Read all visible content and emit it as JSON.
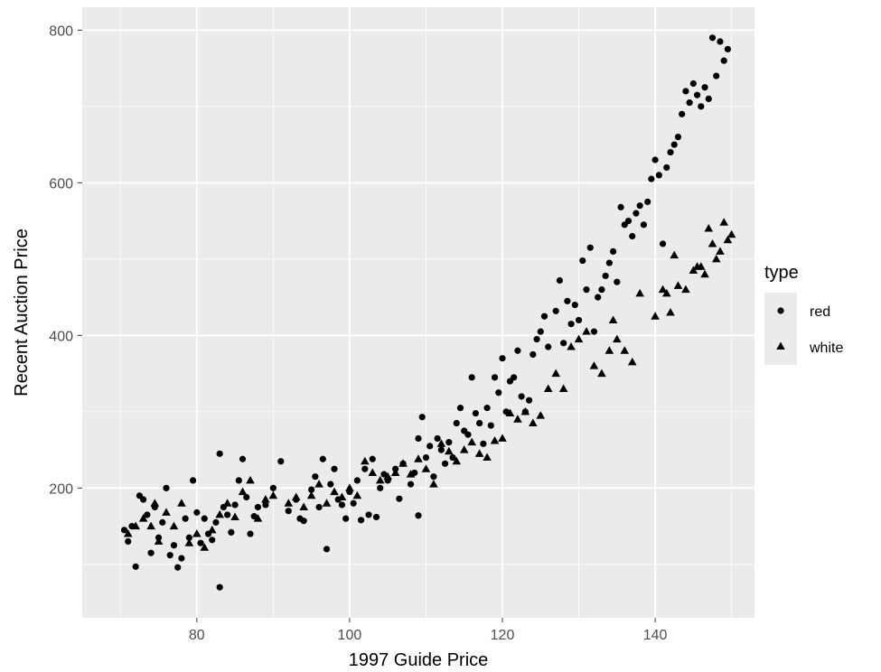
{
  "chart_data": {
    "type": "scatter",
    "title": "",
    "xlabel": "1997 Guide Price",
    "ylabel": "Recent Auction Price",
    "xlim": [
      65,
      153
    ],
    "ylim": [
      30,
      830
    ],
    "x_ticks": [
      80,
      100,
      120,
      140
    ],
    "y_ticks": [
      200,
      400,
      600,
      800
    ],
    "grid": true,
    "legend": {
      "title": "type",
      "position": "right",
      "entries": [
        {
          "label": "red",
          "shape": "circle"
        },
        {
          "label": "white",
          "shape": "triangle"
        }
      ]
    },
    "series": [
      {
        "name": "red",
        "shape": "circle",
        "points": [
          [
            70.5,
            145
          ],
          [
            71,
            130
          ],
          [
            71.5,
            150
          ],
          [
            72,
            97
          ],
          [
            72.5,
            190
          ],
          [
            73,
            185
          ],
          [
            73.5,
            165
          ],
          [
            74,
            115
          ],
          [
            74.5,
            175
          ],
          [
            75,
            135
          ],
          [
            75.5,
            155
          ],
          [
            76,
            200
          ],
          [
            76.5,
            112
          ],
          [
            77,
            125
          ],
          [
            77.5,
            96
          ],
          [
            78,
            108
          ],
          [
            78.5,
            160
          ],
          [
            79,
            135
          ],
          [
            79.5,
            210
          ],
          [
            80,
            168
          ],
          [
            80.5,
            128
          ],
          [
            81,
            160
          ],
          [
            81.5,
            140
          ],
          [
            82,
            132
          ],
          [
            82.5,
            155
          ],
          [
            83,
            245
          ],
          [
            83,
            70
          ],
          [
            83.5,
            175
          ],
          [
            84,
            165
          ],
          [
            84.5,
            142
          ],
          [
            85,
            178
          ],
          [
            85.5,
            210
          ],
          [
            86,
            238
          ],
          [
            86.5,
            188
          ],
          [
            87,
            140
          ],
          [
            87.5,
            163
          ],
          [
            88,
            175
          ],
          [
            89,
            178
          ],
          [
            90,
            200
          ],
          [
            91,
            235
          ],
          [
            92,
            170
          ],
          [
            93,
            185
          ],
          [
            93.5,
            160
          ],
          [
            94,
            157
          ],
          [
            95,
            198
          ],
          [
            95.5,
            215
          ],
          [
            96,
            175
          ],
          [
            96.5,
            238
          ],
          [
            97,
            120
          ],
          [
            97.5,
            205
          ],
          [
            98,
            225
          ],
          [
            98.5,
            185
          ],
          [
            99,
            178
          ],
          [
            99.5,
            160
          ],
          [
            100,
            195
          ],
          [
            100.5,
            180
          ],
          [
            101,
            210
          ],
          [
            101.5,
            158
          ],
          [
            102,
            225
          ],
          [
            102.5,
            165
          ],
          [
            103,
            238
          ],
          [
            103.5,
            162
          ],
          [
            104,
            200
          ],
          [
            104.5,
            218
          ],
          [
            105,
            210
          ],
          [
            106,
            225
          ],
          [
            106.5,
            186
          ],
          [
            107,
            232
          ],
          [
            108,
            205
          ],
          [
            108.5,
            220
          ],
          [
            109,
            265
          ],
          [
            109,
            164
          ],
          [
            109.5,
            293
          ],
          [
            110,
            240
          ],
          [
            110.5,
            255
          ],
          [
            111,
            215
          ],
          [
            111.5,
            265
          ],
          [
            112,
            250
          ],
          [
            112.5,
            232
          ],
          [
            113,
            260
          ],
          [
            113.5,
            240
          ],
          [
            114,
            285
          ],
          [
            114.5,
            305
          ],
          [
            115,
            275
          ],
          [
            115.5,
            270
          ],
          [
            116,
            345
          ],
          [
            116.5,
            298
          ],
          [
            117,
            285
          ],
          [
            117.5,
            258
          ],
          [
            118,
            305
          ],
          [
            118.5,
            282
          ],
          [
            119,
            345
          ],
          [
            119.5,
            325
          ],
          [
            120,
            370
          ],
          [
            120.5,
            300
          ],
          [
            121,
            340
          ],
          [
            121.5,
            345
          ],
          [
            122,
            380
          ],
          [
            122.5,
            320
          ],
          [
            123,
            300
          ],
          [
            123.5,
            315
          ],
          [
            124,
            375
          ],
          [
            124.5,
            395
          ],
          [
            125,
            405
          ],
          [
            125.5,
            425
          ],
          [
            126,
            385
          ],
          [
            127,
            432
          ],
          [
            127.5,
            472
          ],
          [
            128,
            390
          ],
          [
            128.5,
            445
          ],
          [
            129,
            415
          ],
          [
            129.5,
            440
          ],
          [
            130,
            420
          ],
          [
            130.5,
            498
          ],
          [
            131,
            460
          ],
          [
            131.5,
            515
          ],
          [
            132,
            405
          ],
          [
            132.5,
            450
          ],
          [
            133,
            460
          ],
          [
            133.5,
            478
          ],
          [
            134,
            495
          ],
          [
            134.5,
            510
          ],
          [
            135,
            470
          ],
          [
            135.5,
            568
          ],
          [
            136,
            545
          ],
          [
            136.5,
            550
          ],
          [
            137,
            530
          ],
          [
            137.5,
            560
          ],
          [
            138,
            570
          ],
          [
            138.5,
            545
          ],
          [
            139,
            575
          ],
          [
            139.5,
            605
          ],
          [
            140,
            630
          ],
          [
            140.5,
            610
          ],
          [
            141,
            520
          ],
          [
            141.5,
            620
          ],
          [
            142,
            640
          ],
          [
            142.5,
            650
          ],
          [
            143,
            660
          ],
          [
            143.5,
            690
          ],
          [
            144,
            720
          ],
          [
            144.5,
            705
          ],
          [
            145,
            730
          ],
          [
            145.5,
            715
          ],
          [
            146,
            700
          ],
          [
            146.5,
            725
          ],
          [
            147,
            710
          ],
          [
            147.5,
            790
          ],
          [
            148,
            740
          ],
          [
            148.5,
            785
          ],
          [
            149,
            760
          ],
          [
            149.5,
            775
          ]
        ]
      },
      {
        "name": "white",
        "shape": "triangle",
        "points": [
          [
            71,
            140
          ],
          [
            72,
            150
          ],
          [
            73,
            160
          ],
          [
            74,
            150
          ],
          [
            74.5,
            180
          ],
          [
            75,
            130
          ],
          [
            76,
            168
          ],
          [
            77,
            150
          ],
          [
            78,
            180
          ],
          [
            79,
            128
          ],
          [
            80,
            140
          ],
          [
            81,
            122
          ],
          [
            82,
            145
          ],
          [
            83,
            165
          ],
          [
            84,
            180
          ],
          [
            85,
            162
          ],
          [
            86,
            195
          ],
          [
            87,
            210
          ],
          [
            88,
            160
          ],
          [
            89,
            185
          ],
          [
            90,
            190
          ],
          [
            92,
            180
          ],
          [
            93,
            188
          ],
          [
            94,
            175
          ],
          [
            95,
            190
          ],
          [
            96,
            205
          ],
          [
            97,
            180
          ],
          [
            98,
            195
          ],
          [
            99,
            188
          ],
          [
            100,
            200
          ],
          [
            101,
            190
          ],
          [
            102,
            235
          ],
          [
            103,
            220
          ],
          [
            104,
            210
          ],
          [
            105,
            215
          ],
          [
            106,
            220
          ],
          [
            107,
            232
          ],
          [
            108,
            218
          ],
          [
            109,
            238
          ],
          [
            110,
            225
          ],
          [
            111,
            205
          ],
          [
            112,
            258
          ],
          [
            113,
            248
          ],
          [
            114,
            235
          ],
          [
            115,
            250
          ],
          [
            116,
            260
          ],
          [
            117,
            245
          ],
          [
            118,
            240
          ],
          [
            119,
            262
          ],
          [
            120,
            265
          ],
          [
            121,
            298
          ],
          [
            122,
            290
          ],
          [
            123,
            300
          ],
          [
            124,
            285
          ],
          [
            125,
            295
          ],
          [
            126,
            330
          ],
          [
            127,
            350
          ],
          [
            128,
            330
          ],
          [
            129,
            385
          ],
          [
            130,
            395
          ],
          [
            131,
            405
          ],
          [
            132,
            360
          ],
          [
            133,
            350
          ],
          [
            134,
            380
          ],
          [
            134.5,
            420
          ],
          [
            135,
            395
          ],
          [
            136,
            380
          ],
          [
            137,
            365
          ],
          [
            138,
            455
          ],
          [
            140,
            425
          ],
          [
            141,
            460
          ],
          [
            141.5,
            455
          ],
          [
            142,
            430
          ],
          [
            142.5,
            505
          ],
          [
            143,
            465
          ],
          [
            144,
            460
          ],
          [
            145,
            485
          ],
          [
            145.5,
            490
          ],
          [
            146,
            490
          ],
          [
            146.5,
            480
          ],
          [
            147,
            540
          ],
          [
            147.5,
            520
          ],
          [
            148,
            500
          ],
          [
            148.5,
            510
          ],
          [
            149,
            548
          ],
          [
            149.5,
            525
          ],
          [
            150,
            532
          ]
        ]
      }
    ]
  }
}
